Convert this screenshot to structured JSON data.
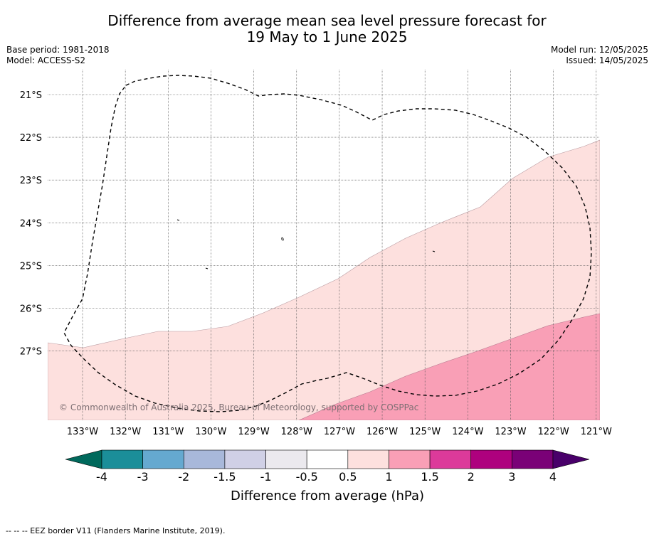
{
  "title": {
    "line1": "Difference from average mean sea level pressure forecast for",
    "line2": "19 May to 1 June 2025"
  },
  "meta_left": {
    "base_period": "Base period: 1981-2018",
    "model": "Model: ACCESS-S2"
  },
  "meta_right": {
    "model_run": "Model run: 12/05/2025",
    "issued": "Issued: 14/05/2025"
  },
  "map": {
    "latitude_labels": [
      "21°S",
      "22°S",
      "23°S",
      "24°S",
      "25°S",
      "26°S",
      "27°S"
    ],
    "longitude_labels": [
      "133°W",
      "132°W",
      "131°W",
      "130°W",
      "129°W",
      "128°W",
      "127°W",
      "126°W",
      "125°W",
      "124°W",
      "123°W",
      "122°W",
      "121°W"
    ],
    "copyright": "© Commonwealth of Australia 2025, Bureau of Meteorology, supported by COSPPac",
    "field_colors": {
      "band_0_5_to_1": "#fde0de",
      "band_1_to_1_5": "#f99fb6"
    },
    "eez_border_color": "#000000"
  },
  "colorbar": {
    "title": "Difference from average (hPa)",
    "labels": [
      "-4",
      "-3",
      "-2",
      "-1.5",
      "-1",
      "-0.5",
      "0.5",
      "1",
      "1.5",
      "2",
      "3",
      "4"
    ],
    "colors": [
      "#1b8e99",
      "#65a9d0",
      "#a8b8da",
      "#d0d0e6",
      "#ebe9ee",
      "#ffffff",
      "#fde0de",
      "#f99fb6",
      "#dc3a9a",
      "#ae017e",
      "#7a0177"
    ],
    "under_color": "#00695c",
    "over_color": "#49006a"
  },
  "footnote": "--  --  -- EEZ border V11 (Flanders Marine Institute, 2019)."
}
